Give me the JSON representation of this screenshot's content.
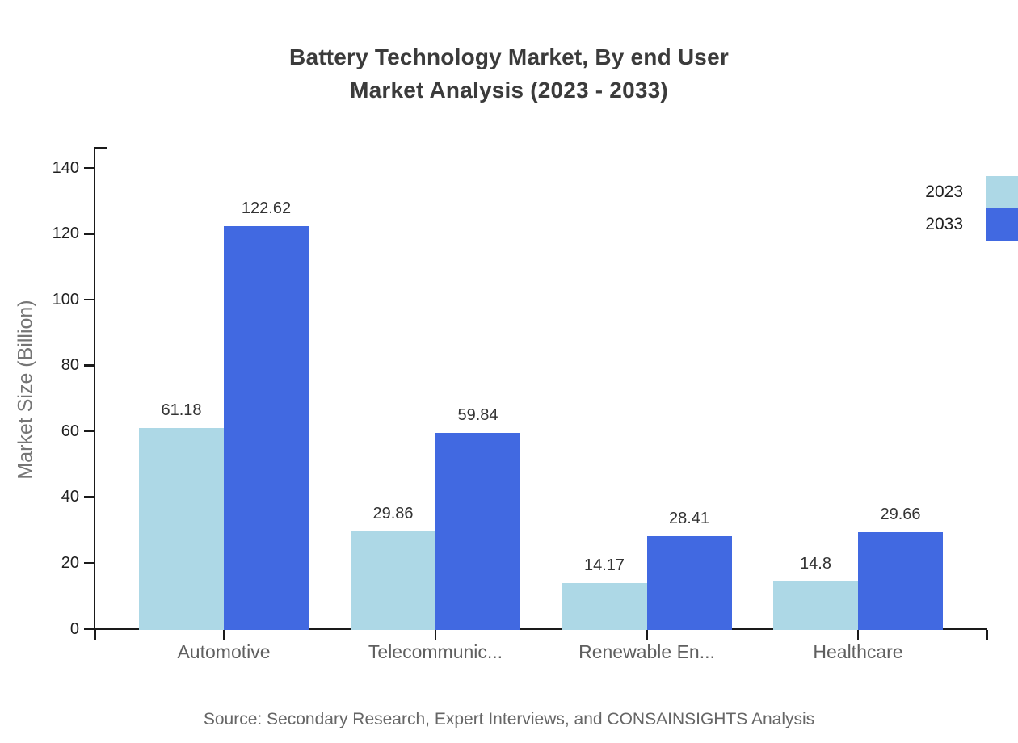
{
  "title": {
    "line1": "Battery Technology Market, By end User",
    "line2": "Market Analysis (2023 - 2033)"
  },
  "chart_data": {
    "type": "bar",
    "categories": [
      "Automotive",
      "Telecommunic...",
      "Renewable En...",
      "Healthcare"
    ],
    "series": [
      {
        "name": "2023",
        "color": "#ADD8E6",
        "values": [
          61.18,
          29.86,
          14.17,
          14.8
        ]
      },
      {
        "name": "2033",
        "color": "#4169E1",
        "values": [
          122.62,
          59.84,
          28.41,
          29.66
        ]
      }
    ],
    "title": "Battery Technology Market, By end User Market Analysis (2023 - 2033)",
    "xlabel": "",
    "ylabel": "Market Size (Billion)",
    "ylim": [
      0,
      140
    ],
    "yticks": [
      0,
      20,
      40,
      60,
      80,
      100,
      120,
      140
    ],
    "grid": false,
    "legend_position": "top-right",
    "bar_value_labels": [
      "61.18",
      "122.62",
      "29.86",
      "59.84",
      "14.17",
      "28.41",
      "14.8",
      "29.66"
    ]
  },
  "source": "Source: Secondary Research, Expert Interviews, and CONSAINSIGHTS Analysis",
  "colors": {
    "series_2023": "#ADD8E6",
    "series_2033": "#4169E1",
    "axis": "#1a1a1a",
    "title_text": "#3b3b3b",
    "muted_text": "#666666"
  }
}
